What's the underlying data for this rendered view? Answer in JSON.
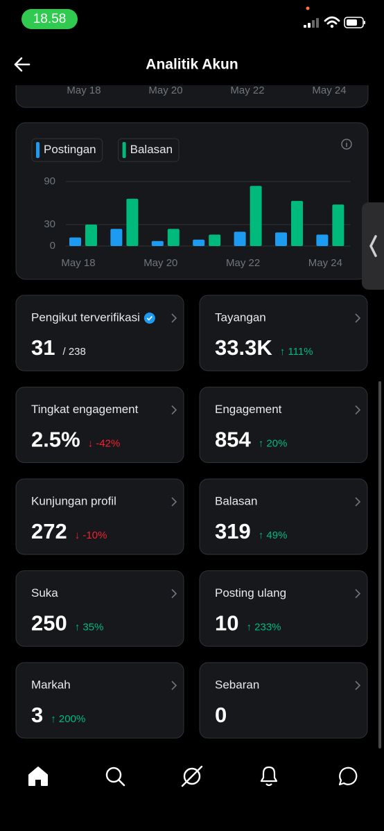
{
  "status_bar": {
    "time": "18.58"
  },
  "header": {
    "title": "Analitik Akun"
  },
  "top_card": {
    "labels": [
      "May 18",
      "May 20",
      "May 22",
      "May 24"
    ]
  },
  "chart_data": {
    "type": "bar",
    "categories": [
      "May 18",
      null,
      "May 20",
      null,
      "May 22",
      null,
      "May 24"
    ],
    "series": [
      {
        "name": "Postingan",
        "color": "#1d9bf0",
        "values": [
          12,
          24,
          7,
          9,
          20,
          19,
          16
        ]
      },
      {
        "name": "Balasan",
        "color": "#00ba7c",
        "values": [
          30,
          66,
          24,
          16,
          84,
          63,
          58
        ]
      }
    ],
    "ylim": [
      0,
      90
    ],
    "yticks": [
      0,
      30,
      90
    ],
    "grid": true
  },
  "cards": [
    {
      "label": "Pengikut terverifikasi",
      "value": "31",
      "suffix": "/ 238"
    },
    {
      "label": "Tayangan",
      "value": "33.3K",
      "change": "↑ 111%",
      "change_color": "#00ba7c"
    },
    {
      "label": "Tingkat engagement",
      "value": "2.5%",
      "change": "↓ -42%",
      "change_color": "#f4212e"
    },
    {
      "label": "Engagement",
      "value": "854",
      "change": "↑ 20%",
      "change_color": "#00ba7c"
    },
    {
      "label": "Kunjungan profil",
      "value": "272",
      "change": "↓ -10%",
      "change_color": "#f4212e"
    },
    {
      "label": "Balasan",
      "value": "319",
      "change": "↑ 49%",
      "change_color": "#00ba7c"
    },
    {
      "label": "Suka",
      "value": "250",
      "change": "↑ 35%",
      "change_color": "#00ba7c"
    },
    {
      "label": "Posting ulang",
      "value": "10",
      "change": "↑ 233%",
      "change_color": "#00ba7c"
    },
    {
      "label": "Markah",
      "value": "3",
      "change": "↑ 200%",
      "change_color": "#00ba7c"
    },
    {
      "label": "Sebaran",
      "value": "0"
    }
  ]
}
